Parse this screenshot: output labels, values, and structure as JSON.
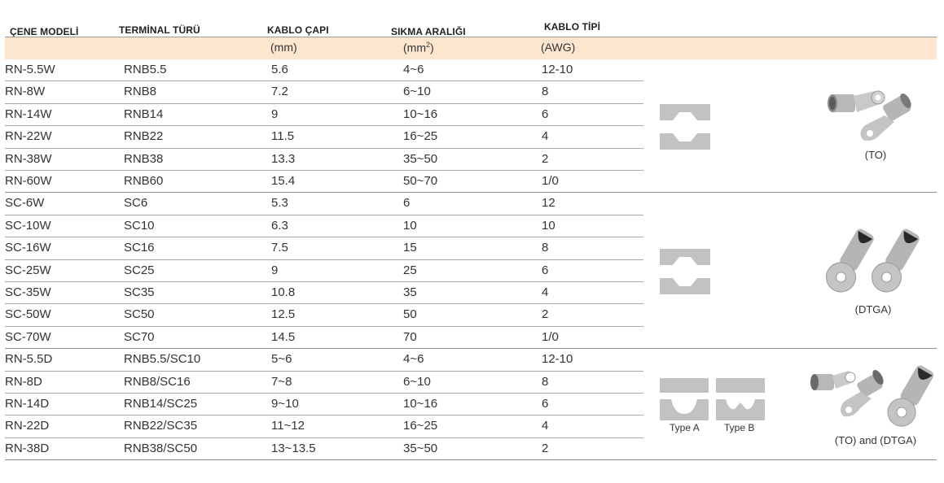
{
  "headers": {
    "jaw_model": "ÇENE MODELİ",
    "terminal_type": "TERMİNAL TÜRÜ",
    "cable_diameter": "KABLO ÇAPI",
    "crimp_range": "SIKMA ARALIĞI",
    "cable_type": "KABLO TİPİ"
  },
  "units": {
    "diameter": "(mm)",
    "range_open": "(mm",
    "range_sup": "2",
    "range_close": ")",
    "awg": "(AWG)"
  },
  "rows": [
    {
      "model": "RN-5.5W",
      "terminal": "RNB5.5",
      "diameter": "5.6",
      "range": "4~6",
      "awg": "12-10"
    },
    {
      "model": "RN-8W",
      "terminal": "RNB8",
      "diameter": "7.2",
      "range": "6~10",
      "awg": "8"
    },
    {
      "model": "RN-14W",
      "terminal": "RNB14",
      "diameter": "9",
      "range": "10~16",
      "awg": "6"
    },
    {
      "model": "RN-22W",
      "terminal": "RNB22",
      "diameter": "11.5",
      "range": "16~25",
      "awg": "4"
    },
    {
      "model": "RN-38W",
      "terminal": "RNB38",
      "diameter": "13.3",
      "range": "35~50",
      "awg": "2"
    },
    {
      "model": "RN-60W",
      "terminal": "RNB60",
      "diameter": "15.4",
      "range": "50~70",
      "awg": "1/0"
    },
    {
      "model": "SC-6W",
      "terminal": "SC6",
      "diameter": "5.3",
      "range": "6",
      "awg": "12"
    },
    {
      "model": "SC-10W",
      "terminal": "SC10",
      "diameter": "6.3",
      "range": "10",
      "awg": "10"
    },
    {
      "model": "SC-16W",
      "terminal": "SC16",
      "diameter": "7.5",
      "range": "15",
      "awg": "8"
    },
    {
      "model": "SC-25W",
      "terminal": "SC25",
      "diameter": "9",
      "range": "25",
      "awg": "6"
    },
    {
      "model": "SC-35W",
      "terminal": "SC35",
      "diameter": "10.8",
      "range": "35",
      "awg": "4"
    },
    {
      "model": "SC-50W",
      "terminal": "SC50",
      "diameter": "12.5",
      "range": "50",
      "awg": "2"
    },
    {
      "model": "SC-70W",
      "terminal": "SC70",
      "diameter": "14.5",
      "range": "70",
      "awg": "1/0"
    },
    {
      "model": "RN-5.5D",
      "terminal": "RNB5.5/SC10",
      "diameter": "5~6",
      "range": "4~6",
      "awg": "12-10"
    },
    {
      "model": "RN-8D",
      "terminal": "RNB8/SC16",
      "diameter": "7~8",
      "range": "6~10",
      "awg": "8"
    },
    {
      "model": "RN-14D",
      "terminal": "RNB14/SC25",
      "diameter": "9~10",
      "range": "10~16",
      "awg": "6"
    },
    {
      "model": "RN-22D",
      "terminal": "RNB22/SC35",
      "diameter": "11~12",
      "range": "16~25",
      "awg": "4"
    },
    {
      "model": "RN-38D",
      "terminal": "RNB38/SC50",
      "diameter": "13~13.5",
      "range": "35~50",
      "awg": "2"
    }
  ],
  "groups": [
    {
      "image_label": "(TO)"
    },
    {
      "image_label": "(DTGA)"
    },
    {
      "image_label": "(TO) and (DTGA)",
      "die_a": "Type A",
      "die_b": "Type B"
    }
  ],
  "colors": {
    "header_band": "#fce6cf",
    "die_gray": "#c2c2c2",
    "lug_silver": "#b5b5b5"
  }
}
